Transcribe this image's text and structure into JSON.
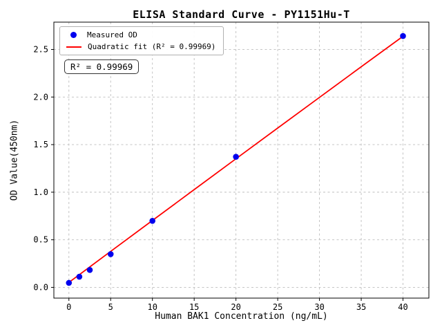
{
  "figure": {
    "title": "ELISA Standard Curve - PY1151Hu-T",
    "annotation_label": "R² = 0.99969"
  },
  "chart_data": {
    "type": "scatter",
    "title": "ELISA Standard Curve - PY1151Hu-T",
    "xlabel": "Human BAK1 Concentration (ng/mL)",
    "ylabel": "OD Value(450nm)",
    "xlim": [
      -1.8,
      43.1
    ],
    "ylim": [
      -0.113,
      2.787
    ],
    "xticks": [
      0,
      5,
      10,
      15,
      20,
      25,
      30,
      35,
      40
    ],
    "xticklabels": [
      "0",
      "5",
      "10",
      "15",
      "20",
      "25",
      "30",
      "35",
      "40"
    ],
    "yticks": [
      0.0,
      0.5,
      1.0,
      1.5,
      2.0,
      2.5
    ],
    "yticklabels": [
      "0.0",
      "0.5",
      "1.0",
      "1.5",
      "2.0",
      "2.5"
    ],
    "grid": true,
    "legend_position": "upper-left",
    "series": [
      {
        "name": "Measured OD",
        "type": "scatter",
        "color": "#0000ee",
        "x": [
          0,
          1.25,
          2.5,
          5,
          10,
          20,
          40
        ],
        "y": [
          0.047,
          0.112,
          0.183,
          0.349,
          0.699,
          1.372,
          2.641
        ]
      },
      {
        "name": "Quadratic fit (R² = 0.99969)",
        "type": "line",
        "color": "#ff0000",
        "x": [
          0,
          5,
          10,
          15,
          20,
          25,
          30,
          35,
          40
        ],
        "y": [
          0.052,
          0.378,
          0.703,
          1.027,
          1.351,
          1.674,
          1.996,
          2.318,
          2.638
        ]
      }
    ],
    "annotation": {
      "text": "R² = 0.99969"
    },
    "colors": {
      "grid": "#bdbdbd",
      "frame": "#000000",
      "background": "#ffffff",
      "scatter": "#0000ee",
      "fit_line": "#ff0000"
    }
  }
}
